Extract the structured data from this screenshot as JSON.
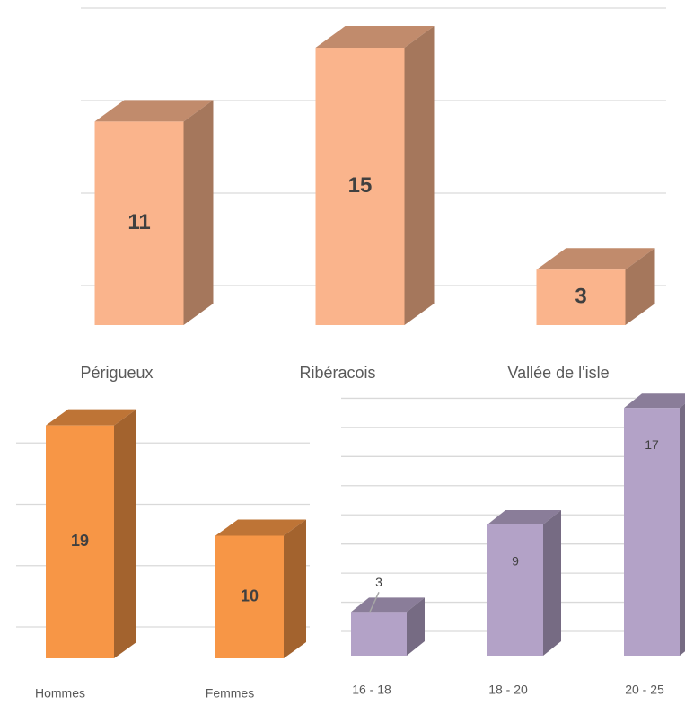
{
  "chart_data": [
    {
      "type": "bar3d",
      "categories": [
        "Périgueux",
        "Ribéracois",
        "Vallée de l'isle"
      ],
      "values": [
        11,
        15,
        3
      ],
      "color": "#fab48c",
      "ylim": [
        0,
        15
      ],
      "yticks": [
        0,
        5,
        10,
        15
      ],
      "grid": true
    },
    {
      "type": "bar3d",
      "categories": [
        "Hommes",
        "Femmes"
      ],
      "values": [
        19,
        10
      ],
      "color": "#f79646",
      "ylim": [
        0,
        20
      ],
      "yticks": [
        0,
        5,
        10,
        15
      ],
      "grid": true
    },
    {
      "type": "bar3d",
      "categories": [
        "16 - 18",
        "18 - 20",
        "20 - 25"
      ],
      "values": [
        3,
        9,
        17
      ],
      "color": "#b3a2c7",
      "ylim": [
        0,
        18
      ],
      "yticks": [
        0,
        2,
        4,
        6,
        8,
        10,
        12,
        14,
        16
      ],
      "grid": true
    }
  ]
}
